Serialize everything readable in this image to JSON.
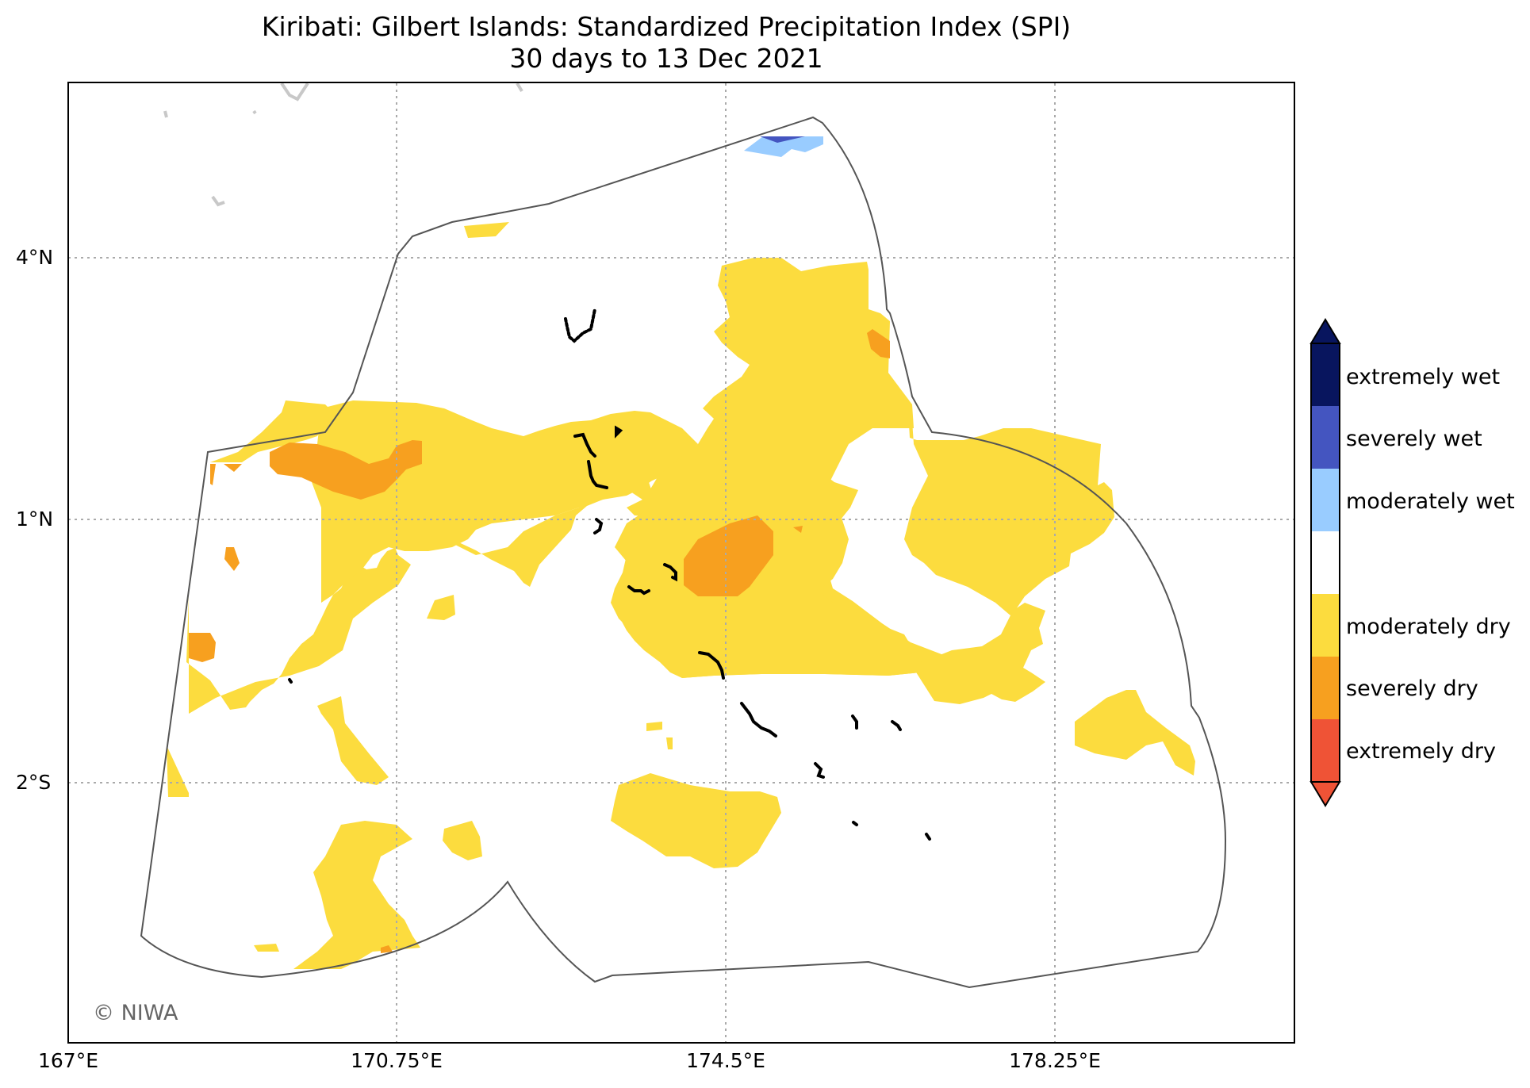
{
  "title": {
    "line1": "Kiribati: Gilbert Islands: Standardized Precipitation Index (SPI)",
    "line2": "30 days to 13 Dec 2021"
  },
  "axes": {
    "x_ticks": [
      "167°E",
      "170.75°E",
      "174.5°E",
      "178.25°E"
    ],
    "y_ticks": [
      "4°N",
      "1°N",
      "2°S"
    ]
  },
  "legend": {
    "items": [
      {
        "label": "extremely wet",
        "color": "#08155e"
      },
      {
        "label": "severely wet",
        "color": "#4455c0"
      },
      {
        "label": "moderately wet",
        "color": "#99ccff"
      },
      {
        "label": "",
        "color": "#ffffff"
      },
      {
        "label": "moderately dry",
        "color": "#fcdc3e"
      },
      {
        "label": "severely dry",
        "color": "#f7a01f"
      },
      {
        "label": "extremely dry",
        "color": "#ef5336"
      }
    ]
  },
  "colors": {
    "moderately_dry": "#fcdc3e",
    "severely_dry": "#f7a01f",
    "moderately_wet": "#99ccff",
    "severely_wet": "#4455c0",
    "region_outline": "#555555",
    "gridline": "#aaaaaa",
    "islands": "#000000"
  },
  "copyright": "© NIWA"
}
